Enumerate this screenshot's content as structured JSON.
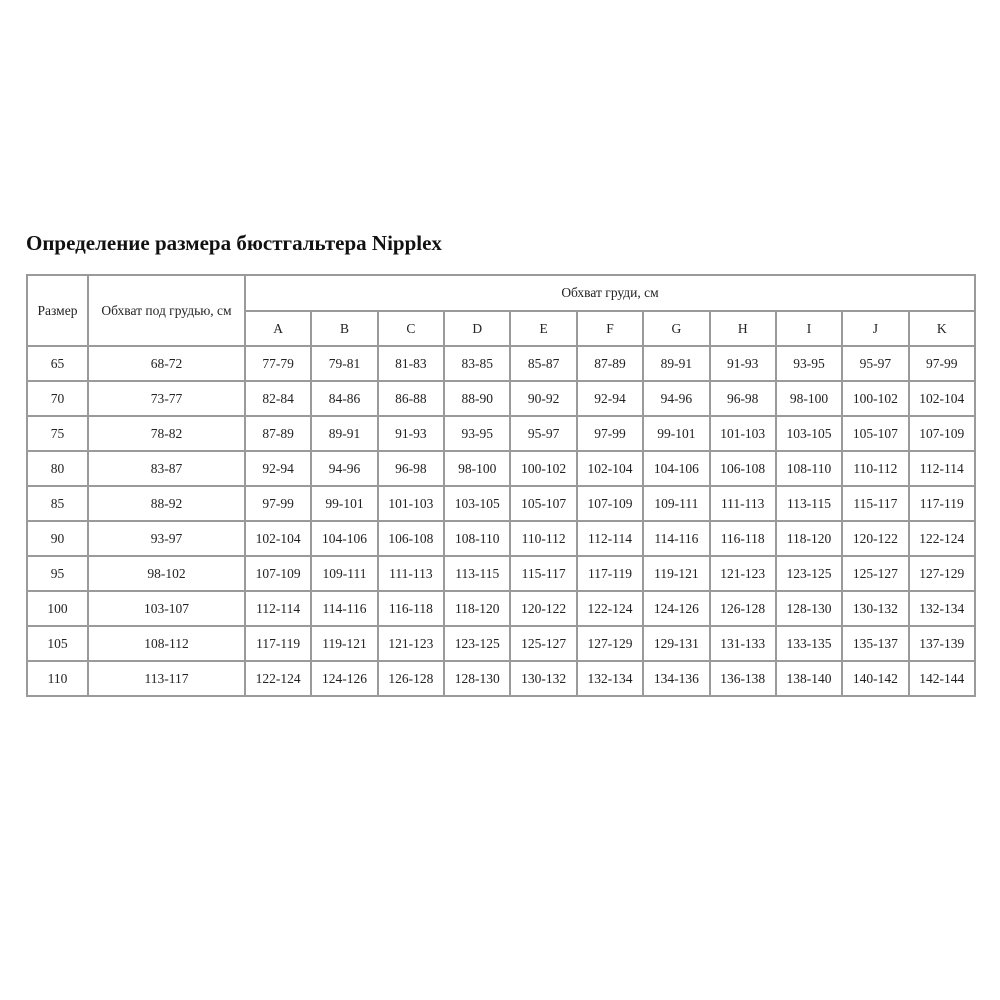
{
  "title": "Определение размера бюстгальтера Nipplex",
  "headers": {
    "size": "Размер",
    "underbust": "Обхват под грудью, см",
    "bust": "Обхват груди, см",
    "cups": [
      "A",
      "B",
      "C",
      "D",
      "E",
      "F",
      "G",
      "H",
      "I",
      "J",
      "K"
    ]
  },
  "rows": [
    {
      "size": "65",
      "underbust": "68-72",
      "cups": [
        "77-79",
        "79-81",
        "81-83",
        "83-85",
        "85-87",
        "87-89",
        "89-91",
        "91-93",
        "93-95",
        "95-97",
        "97-99"
      ]
    },
    {
      "size": "70",
      "underbust": "73-77",
      "cups": [
        "82-84",
        "84-86",
        "86-88",
        "88-90",
        "90-92",
        "92-94",
        "94-96",
        "96-98",
        "98-100",
        "100-102",
        "102-104"
      ]
    },
    {
      "size": "75",
      "underbust": "78-82",
      "cups": [
        "87-89",
        "89-91",
        "91-93",
        "93-95",
        "95-97",
        "97-99",
        "99-101",
        "101-103",
        "103-105",
        "105-107",
        "107-109"
      ]
    },
    {
      "size": "80",
      "underbust": "83-87",
      "cups": [
        "92-94",
        "94-96",
        "96-98",
        "98-100",
        "100-102",
        "102-104",
        "104-106",
        "106-108",
        "108-110",
        "110-112",
        "112-114"
      ]
    },
    {
      "size": "85",
      "underbust": "88-92",
      "cups": [
        "97-99",
        "99-101",
        "101-103",
        "103-105",
        "105-107",
        "107-109",
        "109-111",
        "111-113",
        "113-115",
        "115-117",
        "117-119"
      ]
    },
    {
      "size": "90",
      "underbust": "93-97",
      "cups": [
        "102-104",
        "104-106",
        "106-108",
        "108-110",
        "110-112",
        "112-114",
        "114-116",
        "116-118",
        "118-120",
        "120-122",
        "122-124"
      ]
    },
    {
      "size": "95",
      "underbust": "98-102",
      "cups": [
        "107-109",
        "109-111",
        "111-113",
        "113-115",
        "115-117",
        "117-119",
        "119-121",
        "121-123",
        "123-125",
        "125-127",
        "127-129"
      ]
    },
    {
      "size": "100",
      "underbust": "103-107",
      "cups": [
        "112-114",
        "114-116",
        "116-118",
        "118-120",
        "120-122",
        "122-124",
        "124-126",
        "126-128",
        "128-130",
        "130-132",
        "132-134"
      ]
    },
    {
      "size": "105",
      "underbust": "108-112",
      "cups": [
        "117-119",
        "119-121",
        "121-123",
        "123-125",
        "125-127",
        "127-129",
        "129-131",
        "131-133",
        "133-135",
        "135-137",
        "137-139"
      ]
    },
    {
      "size": "110",
      "underbust": "113-117",
      "cups": [
        "122-124",
        "124-126",
        "126-128",
        "128-130",
        "130-132",
        "132-134",
        "134-136",
        "136-138",
        "138-140",
        "140-142",
        "142-144"
      ]
    }
  ]
}
